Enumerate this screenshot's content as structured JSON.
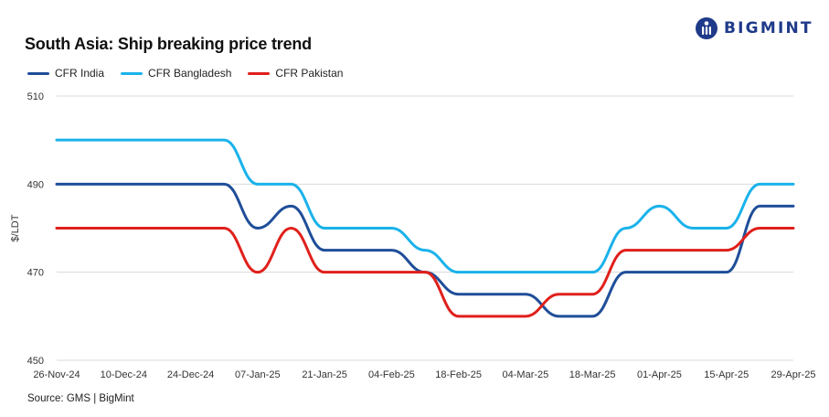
{
  "title": "South Asia: Ship breaking  price trend",
  "brand": {
    "name": "BIGMINT",
    "color": "#1f3a8a",
    "icon": "bigmint-logo-icon"
  },
  "source": "Source: GMS | BigMint",
  "chart_data": {
    "type": "line",
    "title": "South Asia: Ship breaking  price trend",
    "xlabel": "",
    "ylabel": "$/LDT",
    "ylim": [
      450,
      510
    ],
    "yticks": [
      450,
      470,
      490,
      510
    ],
    "grid": true,
    "legend_position": "top-left",
    "x": [
      "26-Nov-24",
      "03-Dec-24",
      "10-Dec-24",
      "17-Dec-24",
      "24-Dec-24",
      "31-Dec-24",
      "07-Jan-25",
      "14-Jan-25",
      "21-Jan-25",
      "28-Jan-25",
      "04-Feb-25",
      "11-Feb-25",
      "18-Feb-25",
      "25-Feb-25",
      "04-Mar-25",
      "11-Mar-25",
      "18-Mar-25",
      "25-Mar-25",
      "01-Apr-25",
      "08-Apr-25",
      "15-Apr-25",
      "22-Apr-25",
      "29-Apr-25"
    ],
    "xticks": [
      "26-Nov-24",
      "10-Dec-24",
      "24-Dec-24",
      "07-Jan-25",
      "21-Jan-25",
      "04-Feb-25",
      "18-Feb-25",
      "04-Mar-25",
      "18-Mar-25",
      "01-Apr-25",
      "15-Apr-25",
      "29-Apr-25"
    ],
    "series": [
      {
        "name": "CFR India",
        "color": "#1f4e99",
        "values": [
          490,
          490,
          490,
          490,
          490,
          490,
          480,
          485,
          475,
          475,
          475,
          470,
          465,
          465,
          465,
          460,
          460,
          470,
          470,
          470,
          470,
          485,
          485
        ]
      },
      {
        "name": "CFR Bangladesh",
        "color": "#1ab2ea",
        "values": [
          500,
          500,
          500,
          500,
          500,
          500,
          490,
          490,
          480,
          480,
          480,
          475,
          470,
          470,
          470,
          470,
          470,
          480,
          485,
          480,
          480,
          490,
          490
        ]
      },
      {
        "name": "CFR Pakistan",
        "color": "#e0201b",
        "values": [
          480,
          480,
          480,
          480,
          480,
          480,
          470,
          480,
          470,
          470,
          470,
          470,
          460,
          460,
          460,
          465,
          465,
          475,
          475,
          475,
          475,
          480,
          480
        ]
      }
    ]
  }
}
